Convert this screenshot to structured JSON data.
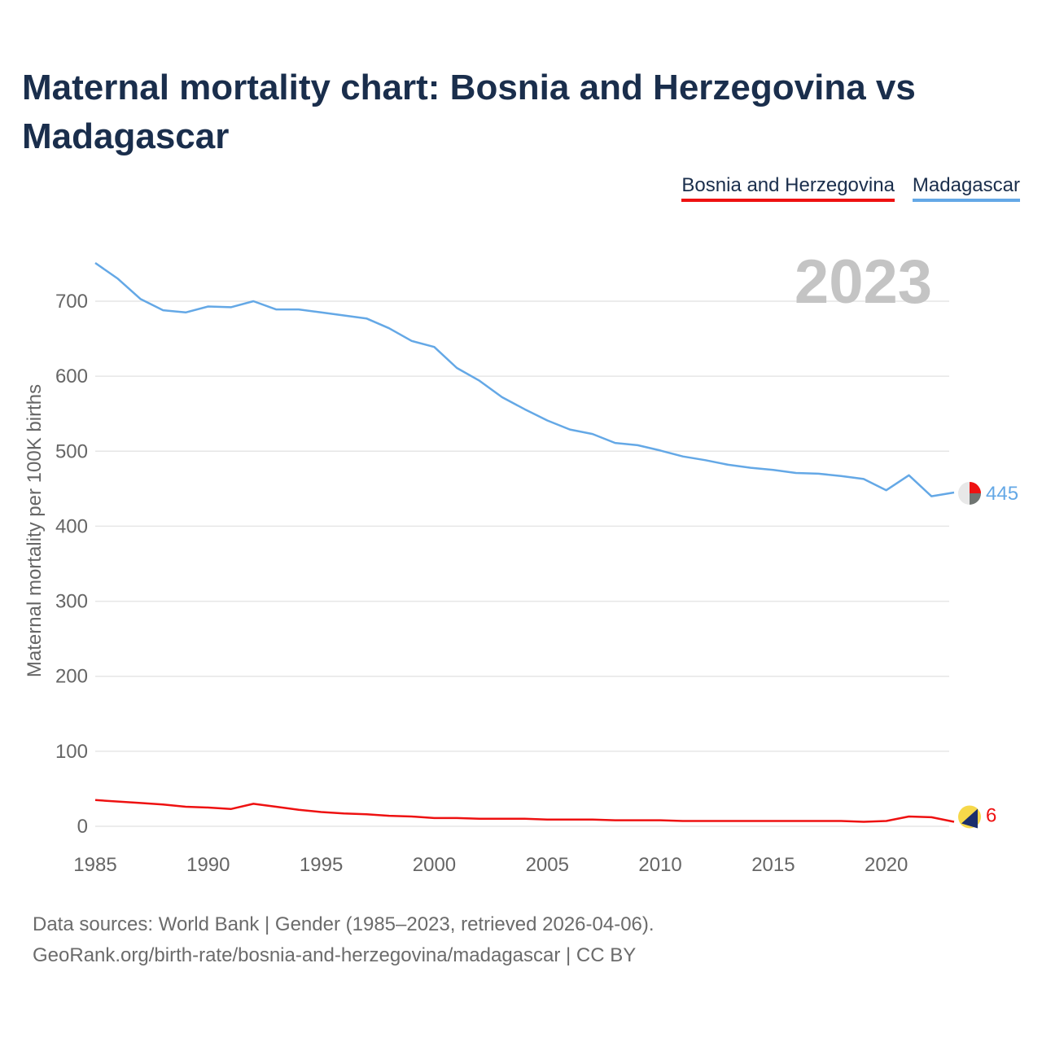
{
  "title": "Maternal mortality chart: Bosnia and Herzegovina vs Madagascar",
  "legend": {
    "bih": "Bosnia and Herzegovina",
    "mdg": "Madagascar"
  },
  "footer": {
    "line1": "Data sources: World Bank | Gender (1985–2023, retrieved 2026-04-06).",
    "line2": "GeoRank.org/birth-rate/bosnia-and-herzegovina/madagascar | CC BY"
  },
  "colors": {
    "bih": "#ee1111",
    "mdg": "#64a8e6",
    "grid": "#e6e6e6",
    "tick": "#666666",
    "year": "#c4c4c4"
  },
  "chart_data": {
    "type": "line",
    "title": "Maternal mortality chart: Bosnia and Herzegovina vs Madagascar",
    "xlabel": "",
    "ylabel": "Maternal mortality per 100K births",
    "xlim": [
      1985,
      2023
    ],
    "ylim": [
      0,
      700
    ],
    "x_ticks": [
      1985,
      1990,
      1995,
      2000,
      2005,
      2010,
      2015,
      2020
    ],
    "y_ticks": [
      0,
      100,
      200,
      300,
      400,
      500,
      600,
      700
    ],
    "year_label": "2023",
    "x": [
      1985,
      1986,
      1987,
      1988,
      1989,
      1990,
      1991,
      1992,
      1993,
      1994,
      1995,
      1996,
      1997,
      1998,
      1999,
      2000,
      2001,
      2002,
      2003,
      2004,
      2005,
      2006,
      2007,
      2008,
      2009,
      2010,
      2011,
      2012,
      2013,
      2014,
      2015,
      2016,
      2017,
      2018,
      2019,
      2020,
      2021,
      2022,
      2023
    ],
    "series": [
      {
        "name": "Bosnia and Herzegovina",
        "key": "bih",
        "end_label": "6",
        "values": [
          35,
          33,
          31,
          29,
          26,
          25,
          23,
          30,
          26,
          22,
          19,
          17,
          16,
          14,
          13,
          11,
          11,
          10,
          10,
          10,
          9,
          9,
          9,
          8,
          8,
          8,
          7,
          7,
          7,
          7,
          7,
          7,
          7,
          7,
          6,
          7,
          13,
          12,
          6
        ]
      },
      {
        "name": "Madagascar",
        "key": "mdg",
        "end_label": "445",
        "values": [
          751,
          730,
          703,
          688,
          685,
          693,
          692,
          700,
          689,
          689,
          685,
          681,
          677,
          664,
          647,
          639,
          611,
          594,
          572,
          556,
          541,
          529,
          523,
          511,
          508,
          501,
          493,
          488,
          482,
          478,
          475,
          471,
          470,
          467,
          463,
          448,
          468,
          440,
          445
        ]
      }
    ]
  }
}
